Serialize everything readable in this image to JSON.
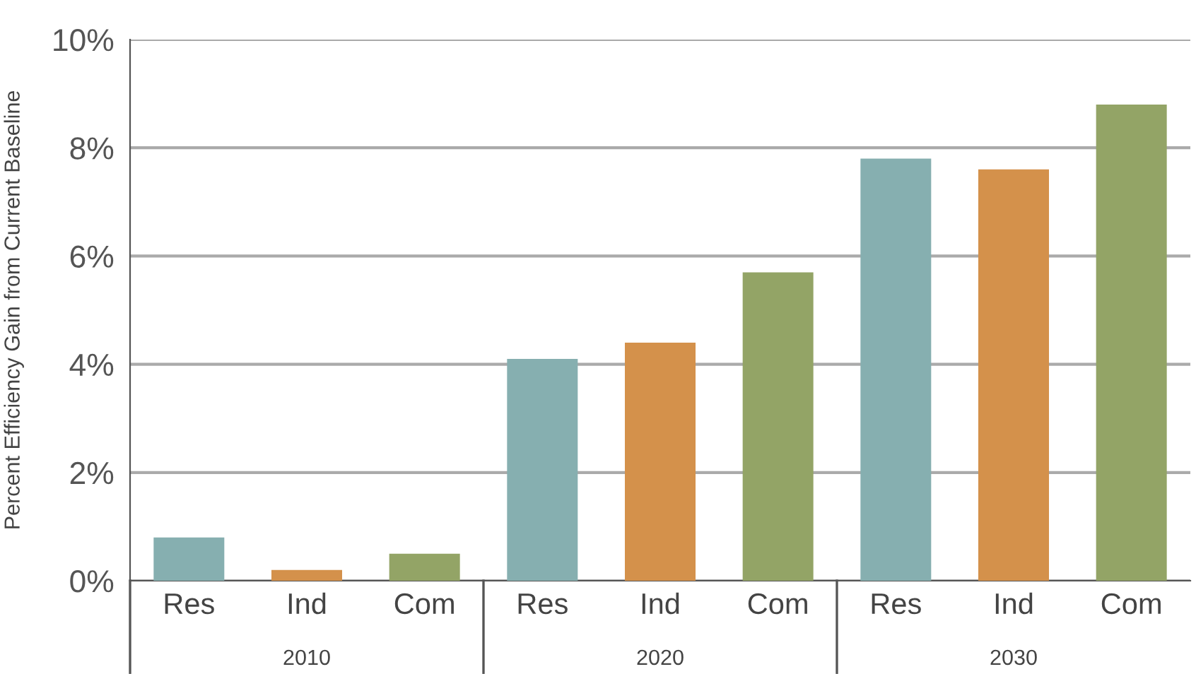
{
  "chart_data": {
    "type": "bar",
    "ylabel": "Percent Efficiency Gain from Current Baseline",
    "categories": [
      "Res",
      "Ind",
      "Com",
      "Res",
      "Ind",
      "Com",
      "Res",
      "Ind",
      "Com"
    ],
    "values": [
      0.8,
      0.2,
      0.5,
      4.1,
      4.4,
      5.7,
      7.8,
      7.6,
      8.8
    ],
    "colors": [
      "#86afb0",
      "#d4914b",
      "#93a466",
      "#86afb0",
      "#d4914b",
      "#93a466",
      "#86afb0",
      "#d4914b",
      "#93a466"
    ],
    "ylim": [
      0,
      10
    ],
    "yticks": [
      {
        "value": 0,
        "label": "0%"
      },
      {
        "value": 2,
        "label": "2%"
      },
      {
        "value": 4,
        "label": "4%"
      },
      {
        "value": 6,
        "label": "6%"
      },
      {
        "value": 8,
        "label": "8%"
      },
      {
        "value": 10,
        "label": "10%"
      }
    ],
    "grid": "y",
    "annotations": [
      "2010",
      "2020",
      "2030"
    ]
  }
}
